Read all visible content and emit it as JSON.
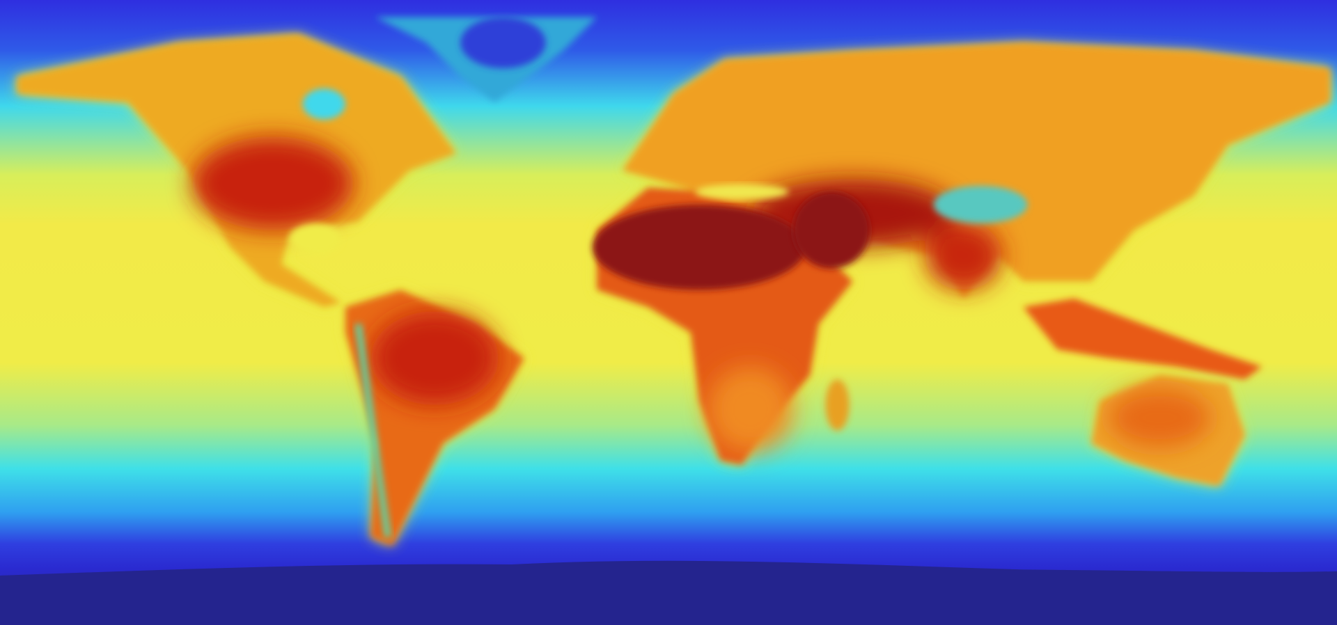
{
  "map": {
    "type": "global surface temperature heatmap",
    "projection": "equirectangular",
    "colormap": [
      "#1a1a80",
      "#2f2fe0",
      "#2f9ff0",
      "#3fe8e8",
      "#f0f040",
      "#f0a020",
      "#e03010",
      "#8c1414"
    ],
    "colors": {
      "polar_ocean": "#2f2fe0",
      "antarctica": "#24248e",
      "mid_ocean": "#3fe0e8",
      "tropical_ocean": "#f0ec48",
      "land_warm": "#f07a18",
      "land_hot": "#d42a10",
      "land_hottest": "#8c1414",
      "greenland": "#30a8d8"
    }
  }
}
